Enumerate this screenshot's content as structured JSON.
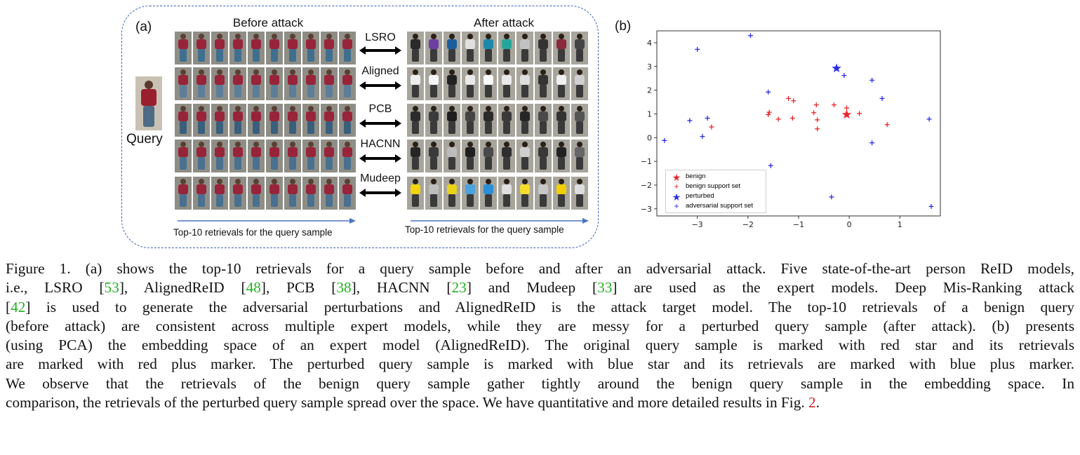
{
  "panel_a": {
    "label": "(a)",
    "before_title": "Before attack",
    "after_title": "After attack",
    "query_label": "Query",
    "models": [
      "LSRO",
      "Aligned",
      "PCB",
      "HACNN",
      "Mudeep"
    ],
    "bottom_caption_left": "Top-10 retrievals for the query sample",
    "bottom_caption_right": "Top-10 retrievals for the query sample"
  },
  "panel_b": {
    "label": "(b)"
  },
  "colors": {
    "benign": "#e8262a",
    "adversarial": "#2b2be8",
    "dashed_border": "#3a62b0",
    "arrow_line": "#4a74c4"
  },
  "chart_data": {
    "type": "scatter",
    "xlim": [
      -3.8,
      1.8
    ],
    "ylim": [
      -3.3,
      4.5
    ],
    "xticks": [
      -3,
      -2,
      -1,
      0,
      1
    ],
    "yticks": [
      -3,
      -2,
      -1,
      0,
      1,
      2,
      3,
      4
    ],
    "grid": false,
    "legend_position": "lower-left",
    "series": [
      {
        "name": "benign",
        "marker": "star",
        "color": "#e8262a",
        "points": [
          [
            -0.05,
            0.97
          ]
        ]
      },
      {
        "name": "benign support set",
        "marker": "plus",
        "color": "#e8262a",
        "points": [
          [
            -2.72,
            0.45
          ],
          [
            -1.6,
            0.97
          ],
          [
            -1.58,
            1.07
          ],
          [
            -1.4,
            0.78
          ],
          [
            -1.2,
            1.65
          ],
          [
            -1.12,
            0.82
          ],
          [
            -1.1,
            1.55
          ],
          [
            -0.7,
            1.05
          ],
          [
            -0.65,
            1.38
          ],
          [
            -0.63,
            0.75
          ],
          [
            -0.63,
            0.37
          ],
          [
            -0.3,
            1.38
          ],
          [
            -0.05,
            1.25
          ],
          [
            0.2,
            1.02
          ],
          [
            0.75,
            0.55
          ]
        ]
      },
      {
        "name": "perturbed",
        "marker": "star",
        "color": "#2b2be8",
        "points": [
          [
            -0.25,
            2.92
          ]
        ]
      },
      {
        "name": "adversarial support set",
        "marker": "plus",
        "color": "#2b2be8",
        "points": [
          [
            -3.0,
            3.72
          ],
          [
            -1.95,
            4.3
          ],
          [
            -1.6,
            1.92
          ],
          [
            -2.8,
            0.82
          ],
          [
            -3.15,
            0.72
          ],
          [
            -2.9,
            0.05
          ],
          [
            -3.65,
            -0.12
          ],
          [
            -1.55,
            -1.18
          ],
          [
            -0.1,
            2.62
          ],
          [
            0.45,
            2.42
          ],
          [
            0.65,
            1.65
          ],
          [
            0.45,
            -0.22
          ],
          [
            1.58,
            0.78
          ],
          [
            -0.35,
            -2.5
          ],
          [
            1.62,
            -2.9
          ]
        ]
      }
    ]
  },
  "caption": {
    "lines": [
      [
        {
          "t": "Figure 1. (a) shows the top-10 retrievals for a query sample before and after an adversarial attack. Five state-of-the-art person ReID models,"
        }
      ],
      [
        {
          "t": "i.e., LSRO ["
        },
        {
          "t": "53",
          "c": "green"
        },
        {
          "t": "], AlignedReID ["
        },
        {
          "t": "48",
          "c": "green"
        },
        {
          "t": "], PCB ["
        },
        {
          "t": "38",
          "c": "green"
        },
        {
          "t": "], HACNN ["
        },
        {
          "t": "23",
          "c": "green"
        },
        {
          "t": "] and Mudeep ["
        },
        {
          "t": "33",
          "c": "green"
        },
        {
          "t": "] are used as the expert models. Deep Mis-Ranking attack"
        }
      ],
      [
        {
          "t": "["
        },
        {
          "t": "42",
          "c": "green"
        },
        {
          "t": "] is used to generate the adversarial perturbations and AlignedReID is the attack target model. The top-10 retrievals of a benign query"
        }
      ],
      [
        {
          "t": "(before attack) are consistent across multiple expert models, while they are messy for a perturbed query sample (after attack). (b) presents"
        }
      ],
      [
        {
          "t": "(using PCA) the embedding space of an expert model (AlignedReID). The original query sample is marked with red star and its retrievals"
        }
      ],
      [
        {
          "t": "are marked with red plus marker. The perturbed query sample is marked with blue star and its retrievals are marked with blue plus marker."
        }
      ],
      [
        {
          "t": "We observe that the retrievals of the benign query sample gather tightly around the benign query sample in the embedding space. In"
        }
      ],
      [
        {
          "t": "comparison, the retrievals of the perturbed query sample spread over the space. We have quantitative and more detailed results in Fig. "
        },
        {
          "t": "2",
          "c": "red"
        },
        {
          "t": "."
        }
      ]
    ]
  }
}
